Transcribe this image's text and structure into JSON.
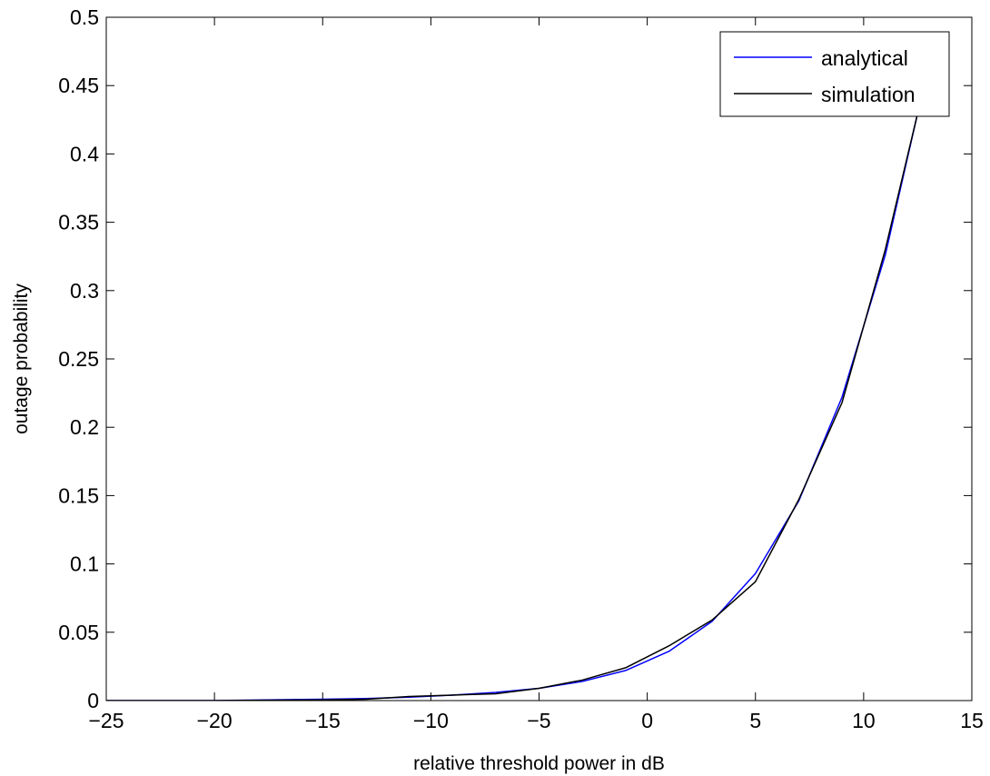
{
  "chart_data": {
    "type": "line",
    "xlabel": "relative threshold power in dB",
    "ylabel": "outage probability",
    "xlim": [
      -25,
      15
    ],
    "ylim": [
      0,
      0.5
    ],
    "xticks": [
      -25,
      -20,
      -15,
      -10,
      -5,
      0,
      5,
      10,
      15
    ],
    "yticks": [
      0,
      0.05,
      0.1,
      0.15,
      0.2,
      0.25,
      0.3,
      0.35,
      0.4,
      0.45,
      0.5
    ],
    "xtick_labels": [
      "−25",
      "−20",
      "−15",
      "−10",
      "−5",
      "0",
      "5",
      "10",
      "15"
    ],
    "ytick_labels": [
      "0",
      "0.05",
      "0.1",
      "0.15",
      "0.2",
      "0.25",
      "0.3",
      "0.35",
      "0.4",
      "0.45",
      "0.5"
    ],
    "grid": false,
    "legend_position": "top-right",
    "series": [
      {
        "name": "analytical",
        "color": "#0000ff",
        "x": [
          -25,
          -20,
          -15,
          -13,
          -11,
          -9,
          -7,
          -5,
          -3,
          -1,
          1,
          3,
          5,
          7,
          9,
          11,
          12.5,
          13.1
        ],
        "y": [
          0,
          0,
          0.001,
          0.0015,
          0.0025,
          0.004,
          0.006,
          0.009,
          0.014,
          0.022,
          0.036,
          0.058,
          0.093,
          0.146,
          0.222,
          0.326,
          0.43,
          0.48
        ]
      },
      {
        "name": "simulation",
        "color": "#000000",
        "x": [
          -25,
          -20,
          -15,
          -13,
          -11,
          -9,
          -7,
          -5,
          -3,
          -1,
          1,
          3,
          5,
          7,
          9,
          11,
          12.5,
          13.1
        ],
        "y": [
          0,
          0,
          0.0005,
          0.001,
          0.003,
          0.004,
          0.005,
          0.009,
          0.015,
          0.024,
          0.04,
          0.059,
          0.087,
          0.147,
          0.218,
          0.33,
          0.43,
          0.48
        ]
      }
    ]
  }
}
